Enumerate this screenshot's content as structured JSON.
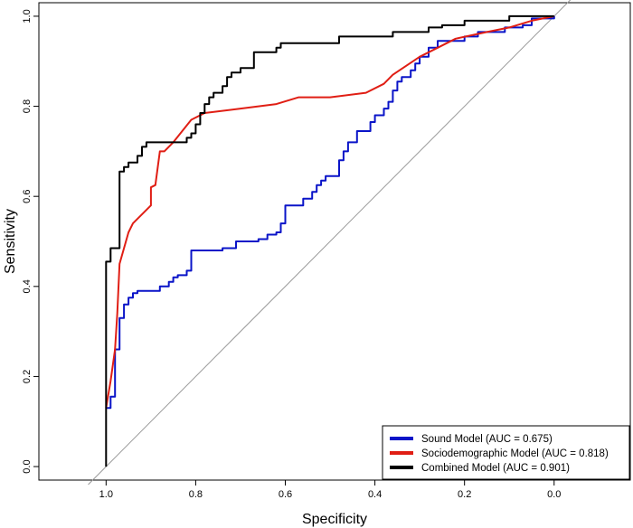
{
  "chart_data": {
    "type": "line",
    "title": "",
    "xlabel": "Specificity",
    "ylabel": "Sensitivity",
    "xlim": [
      1.15,
      -0.17
    ],
    "ylim": [
      -0.03,
      1.03
    ],
    "x_ticks": [
      1.0,
      0.8,
      0.6,
      0.4,
      0.2,
      0.0
    ],
    "x_tick_labels": [
      "1.0",
      "0.8",
      "0.6",
      "0.4",
      "0.2",
      "0.0"
    ],
    "y_ticks": [
      0.0,
      0.2,
      0.4,
      0.6,
      0.8,
      1.0
    ],
    "y_tick_labels": [
      "0.0",
      "0.2",
      "0.4",
      "0.6",
      "0.8",
      "1.0"
    ],
    "grid": false,
    "legend_position": "bottom-right",
    "reference_line": {
      "name": "chance",
      "color": "#9a9a9a",
      "points": [
        [
          1.04,
          -0.04
        ],
        [
          -0.04,
          1.04
        ]
      ]
    },
    "series": [
      {
        "name": "Sound Model (AUC = 0.675)",
        "color": "#0a14c8",
        "step": true,
        "points": [
          [
            1.0,
            0.13
          ],
          [
            0.99,
            0.13
          ],
          [
            0.99,
            0.155
          ],
          [
            0.98,
            0.155
          ],
          [
            0.98,
            0.26
          ],
          [
            0.97,
            0.26
          ],
          [
            0.97,
            0.33
          ],
          [
            0.96,
            0.33
          ],
          [
            0.96,
            0.36
          ],
          [
            0.95,
            0.36
          ],
          [
            0.95,
            0.375
          ],
          [
            0.94,
            0.375
          ],
          [
            0.94,
            0.385
          ],
          [
            0.93,
            0.385
          ],
          [
            0.93,
            0.39
          ],
          [
            0.88,
            0.39
          ],
          [
            0.88,
            0.4
          ],
          [
            0.86,
            0.4
          ],
          [
            0.86,
            0.41
          ],
          [
            0.85,
            0.41
          ],
          [
            0.85,
            0.42
          ],
          [
            0.84,
            0.42
          ],
          [
            0.84,
            0.425
          ],
          [
            0.82,
            0.425
          ],
          [
            0.82,
            0.435
          ],
          [
            0.81,
            0.435
          ],
          [
            0.81,
            0.48
          ],
          [
            0.74,
            0.48
          ],
          [
            0.74,
            0.485
          ],
          [
            0.71,
            0.485
          ],
          [
            0.71,
            0.5
          ],
          [
            0.66,
            0.5
          ],
          [
            0.66,
            0.505
          ],
          [
            0.64,
            0.505
          ],
          [
            0.64,
            0.515
          ],
          [
            0.62,
            0.515
          ],
          [
            0.62,
            0.52
          ],
          [
            0.61,
            0.52
          ],
          [
            0.61,
            0.54
          ],
          [
            0.6,
            0.54
          ],
          [
            0.6,
            0.58
          ],
          [
            0.56,
            0.58
          ],
          [
            0.56,
            0.595
          ],
          [
            0.54,
            0.595
          ],
          [
            0.54,
            0.61
          ],
          [
            0.53,
            0.61
          ],
          [
            0.53,
            0.625
          ],
          [
            0.52,
            0.625
          ],
          [
            0.52,
            0.635
          ],
          [
            0.51,
            0.635
          ],
          [
            0.51,
            0.645
          ],
          [
            0.48,
            0.645
          ],
          [
            0.48,
            0.68
          ],
          [
            0.47,
            0.68
          ],
          [
            0.47,
            0.7
          ],
          [
            0.46,
            0.7
          ],
          [
            0.46,
            0.72
          ],
          [
            0.44,
            0.72
          ],
          [
            0.44,
            0.745
          ],
          [
            0.41,
            0.745
          ],
          [
            0.41,
            0.765
          ],
          [
            0.4,
            0.765
          ],
          [
            0.4,
            0.78
          ],
          [
            0.38,
            0.78
          ],
          [
            0.38,
            0.795
          ],
          [
            0.37,
            0.795
          ],
          [
            0.37,
            0.81
          ],
          [
            0.36,
            0.81
          ],
          [
            0.36,
            0.835
          ],
          [
            0.35,
            0.835
          ],
          [
            0.35,
            0.855
          ],
          [
            0.34,
            0.855
          ],
          [
            0.34,
            0.865
          ],
          [
            0.32,
            0.865
          ],
          [
            0.32,
            0.88
          ],
          [
            0.31,
            0.88
          ],
          [
            0.31,
            0.895
          ],
          [
            0.3,
            0.895
          ],
          [
            0.3,
            0.91
          ],
          [
            0.28,
            0.91
          ],
          [
            0.28,
            0.93
          ],
          [
            0.26,
            0.93
          ],
          [
            0.26,
            0.945
          ],
          [
            0.2,
            0.945
          ],
          [
            0.2,
            0.955
          ],
          [
            0.17,
            0.955
          ],
          [
            0.17,
            0.965
          ],
          [
            0.11,
            0.965
          ],
          [
            0.11,
            0.975
          ],
          [
            0.07,
            0.975
          ],
          [
            0.07,
            0.98
          ],
          [
            0.05,
            0.98
          ],
          [
            0.05,
            0.995
          ],
          [
            0.0,
            0.995
          ],
          [
            0.0,
            1.0
          ]
        ]
      },
      {
        "name": "Sociodemographic Model (AUC = 0.818)",
        "color": "#e01e14",
        "step": false,
        "points": [
          [
            1.0,
            0.13
          ],
          [
            0.99,
            0.19
          ],
          [
            0.98,
            0.26
          ],
          [
            0.975,
            0.34
          ],
          [
            0.97,
            0.45
          ],
          [
            0.95,
            0.52
          ],
          [
            0.94,
            0.54
          ],
          [
            0.9,
            0.58
          ],
          [
            0.9,
            0.62
          ],
          [
            0.89,
            0.625
          ],
          [
            0.88,
            0.7
          ],
          [
            0.87,
            0.7
          ],
          [
            0.85,
            0.72
          ],
          [
            0.83,
            0.745
          ],
          [
            0.81,
            0.77
          ],
          [
            0.78,
            0.785
          ],
          [
            0.7,
            0.795
          ],
          [
            0.62,
            0.805
          ],
          [
            0.57,
            0.82
          ],
          [
            0.5,
            0.82
          ],
          [
            0.42,
            0.83
          ],
          [
            0.38,
            0.85
          ],
          [
            0.36,
            0.87
          ],
          [
            0.3,
            0.91
          ],
          [
            0.22,
            0.95
          ],
          [
            0.15,
            0.965
          ],
          [
            0.1,
            0.975
          ],
          [
            0.05,
            0.99
          ],
          [
            0.0,
            1.0
          ]
        ]
      },
      {
        "name": "Combined Model (AUC = 0.901)",
        "color": "#000000",
        "step": true,
        "points": [
          [
            1.0,
            0.0
          ],
          [
            1.0,
            0.455
          ],
          [
            0.99,
            0.455
          ],
          [
            0.99,
            0.485
          ],
          [
            0.97,
            0.485
          ],
          [
            0.97,
            0.655
          ],
          [
            0.96,
            0.655
          ],
          [
            0.96,
            0.665
          ],
          [
            0.95,
            0.665
          ],
          [
            0.95,
            0.675
          ],
          [
            0.93,
            0.675
          ],
          [
            0.93,
            0.69
          ],
          [
            0.92,
            0.69
          ],
          [
            0.92,
            0.71
          ],
          [
            0.91,
            0.71
          ],
          [
            0.91,
            0.72
          ],
          [
            0.82,
            0.72
          ],
          [
            0.82,
            0.73
          ],
          [
            0.81,
            0.73
          ],
          [
            0.81,
            0.74
          ],
          [
            0.8,
            0.74
          ],
          [
            0.8,
            0.76
          ],
          [
            0.79,
            0.76
          ],
          [
            0.79,
            0.785
          ],
          [
            0.78,
            0.785
          ],
          [
            0.78,
            0.805
          ],
          [
            0.77,
            0.805
          ],
          [
            0.77,
            0.82
          ],
          [
            0.76,
            0.82
          ],
          [
            0.76,
            0.83
          ],
          [
            0.74,
            0.83
          ],
          [
            0.74,
            0.845
          ],
          [
            0.73,
            0.845
          ],
          [
            0.73,
            0.865
          ],
          [
            0.72,
            0.865
          ],
          [
            0.72,
            0.875
          ],
          [
            0.7,
            0.875
          ],
          [
            0.7,
            0.885
          ],
          [
            0.67,
            0.885
          ],
          [
            0.67,
            0.92
          ],
          [
            0.62,
            0.92
          ],
          [
            0.62,
            0.93
          ],
          [
            0.61,
            0.93
          ],
          [
            0.61,
            0.94
          ],
          [
            0.48,
            0.94
          ],
          [
            0.48,
            0.955
          ],
          [
            0.36,
            0.955
          ],
          [
            0.36,
            0.965
          ],
          [
            0.28,
            0.965
          ],
          [
            0.28,
            0.975
          ],
          [
            0.25,
            0.975
          ],
          [
            0.25,
            0.98
          ],
          [
            0.2,
            0.98
          ],
          [
            0.2,
            0.99
          ],
          [
            0.1,
            0.99
          ],
          [
            0.1,
            1.0
          ],
          [
            0.0,
            1.0
          ]
        ]
      }
    ]
  }
}
